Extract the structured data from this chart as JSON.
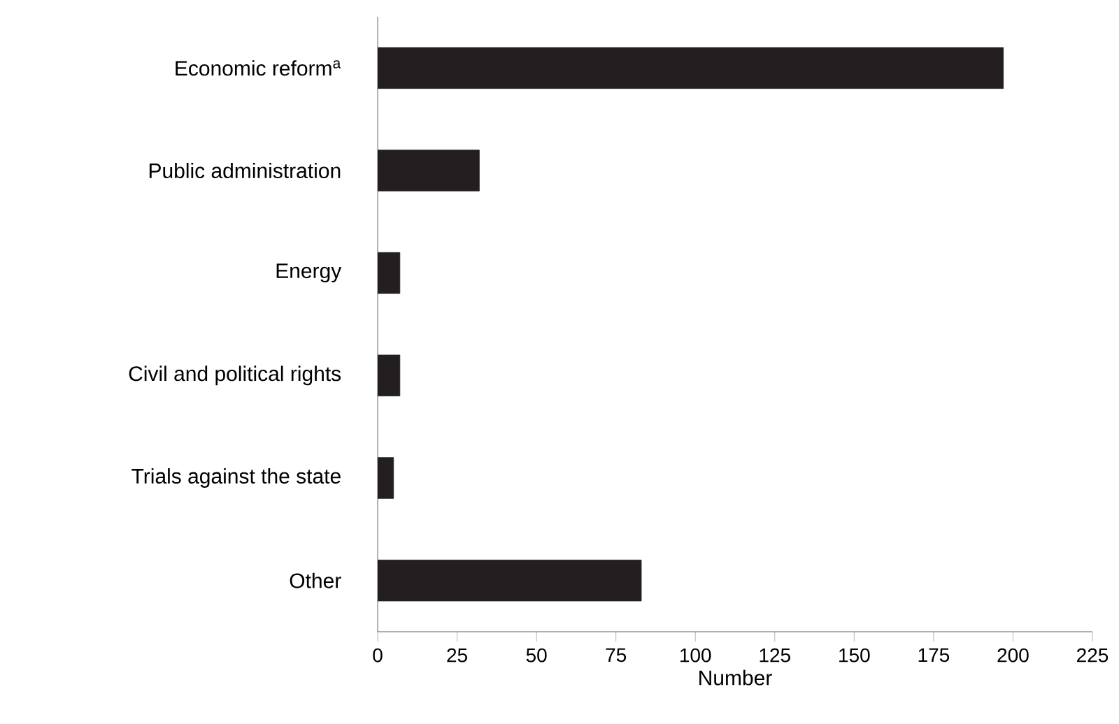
{
  "chart_data": {
    "type": "bar",
    "orientation": "horizontal",
    "xlabel": "Number",
    "categories": [
      "Economic reform$^{a}$",
      "Public administration",
      "Energy",
      "Civil and political rights",
      "Trials against the state",
      "Other"
    ],
    "values": [
      197,
      32,
      7,
      7,
      5,
      83
    ],
    "color": "#231f20",
    "xlim": [
      0,
      225
    ],
    "xticks": [
      0,
      25,
      50,
      75,
      100,
      125,
      150,
      175,
      200,
      225
    ]
  }
}
